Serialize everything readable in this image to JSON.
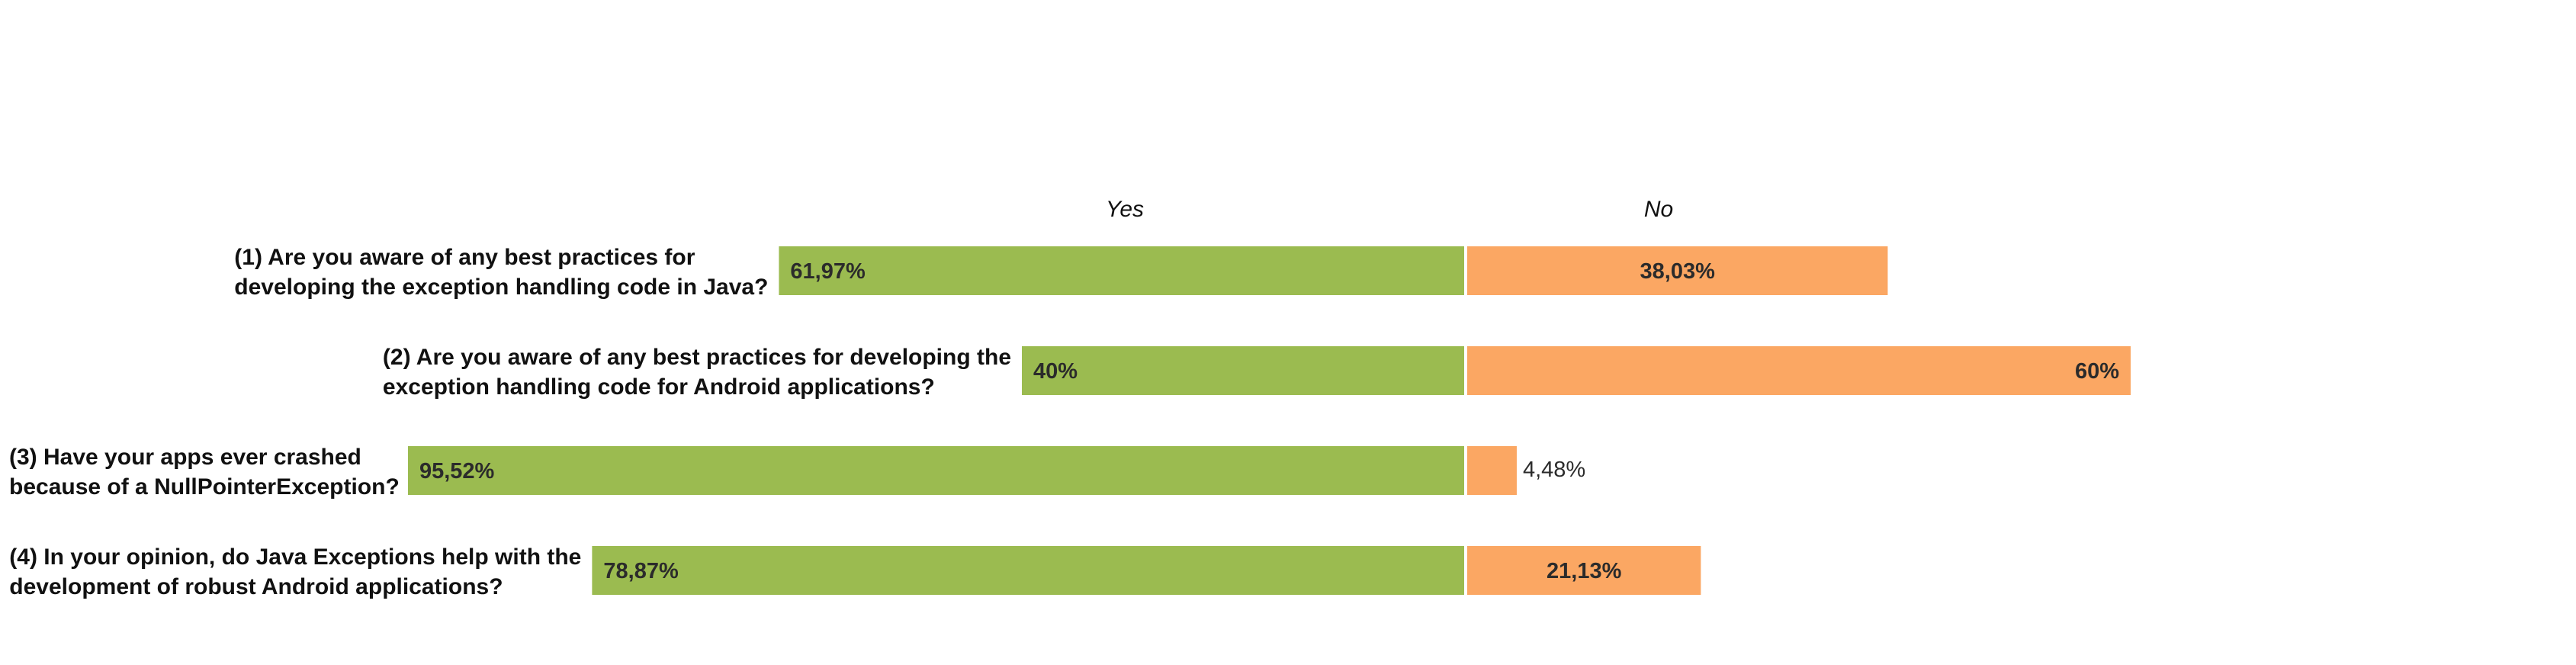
{
  "chart_data": {
    "type": "bar",
    "orientation": "horizontal",
    "stacked": "diverging",
    "title": "",
    "xlabel": "",
    "ylabel": "",
    "categories": [
      "(1) Are you aware of any best practices for developing the exception handling code in Java?",
      "(2) Are you aware of any best practices for developing the exception handling code for Android applications?",
      "(3) Have your apps ever crashed because of a NullPointerException?",
      "(4) In your opinion, do Java Exceptions help with the development of robust Android applications?"
    ],
    "category_lines": [
      [
        "(1) Are you aware of any best practices for",
        "developing the exception handling code in Java?"
      ],
      [
        "(2) Are you aware of any best practices for developing the",
        "exception handling code for Android applications?"
      ],
      [
        "(3) Have your apps ever crashed",
        "because of a NullPointerException?"
      ],
      [
        "(4) In your opinion, do Java Exceptions help with the",
        "development of robust Android applications?"
      ]
    ],
    "series": [
      {
        "name": "Yes",
        "color": "#9bbb50",
        "values": [
          61.97,
          40,
          95.52,
          78.87
        ],
        "labels": [
          "61,97%",
          "40%",
          "95,52%",
          "78,87%"
        ]
      },
      {
        "name": "No",
        "color": "#fba763",
        "values": [
          38.03,
          60,
          4.48,
          21.13
        ],
        "labels": [
          "38,03%",
          "60%",
          "4,48%",
          "21,13%"
        ]
      }
    ],
    "legend": "top",
    "grid": false
  }
}
